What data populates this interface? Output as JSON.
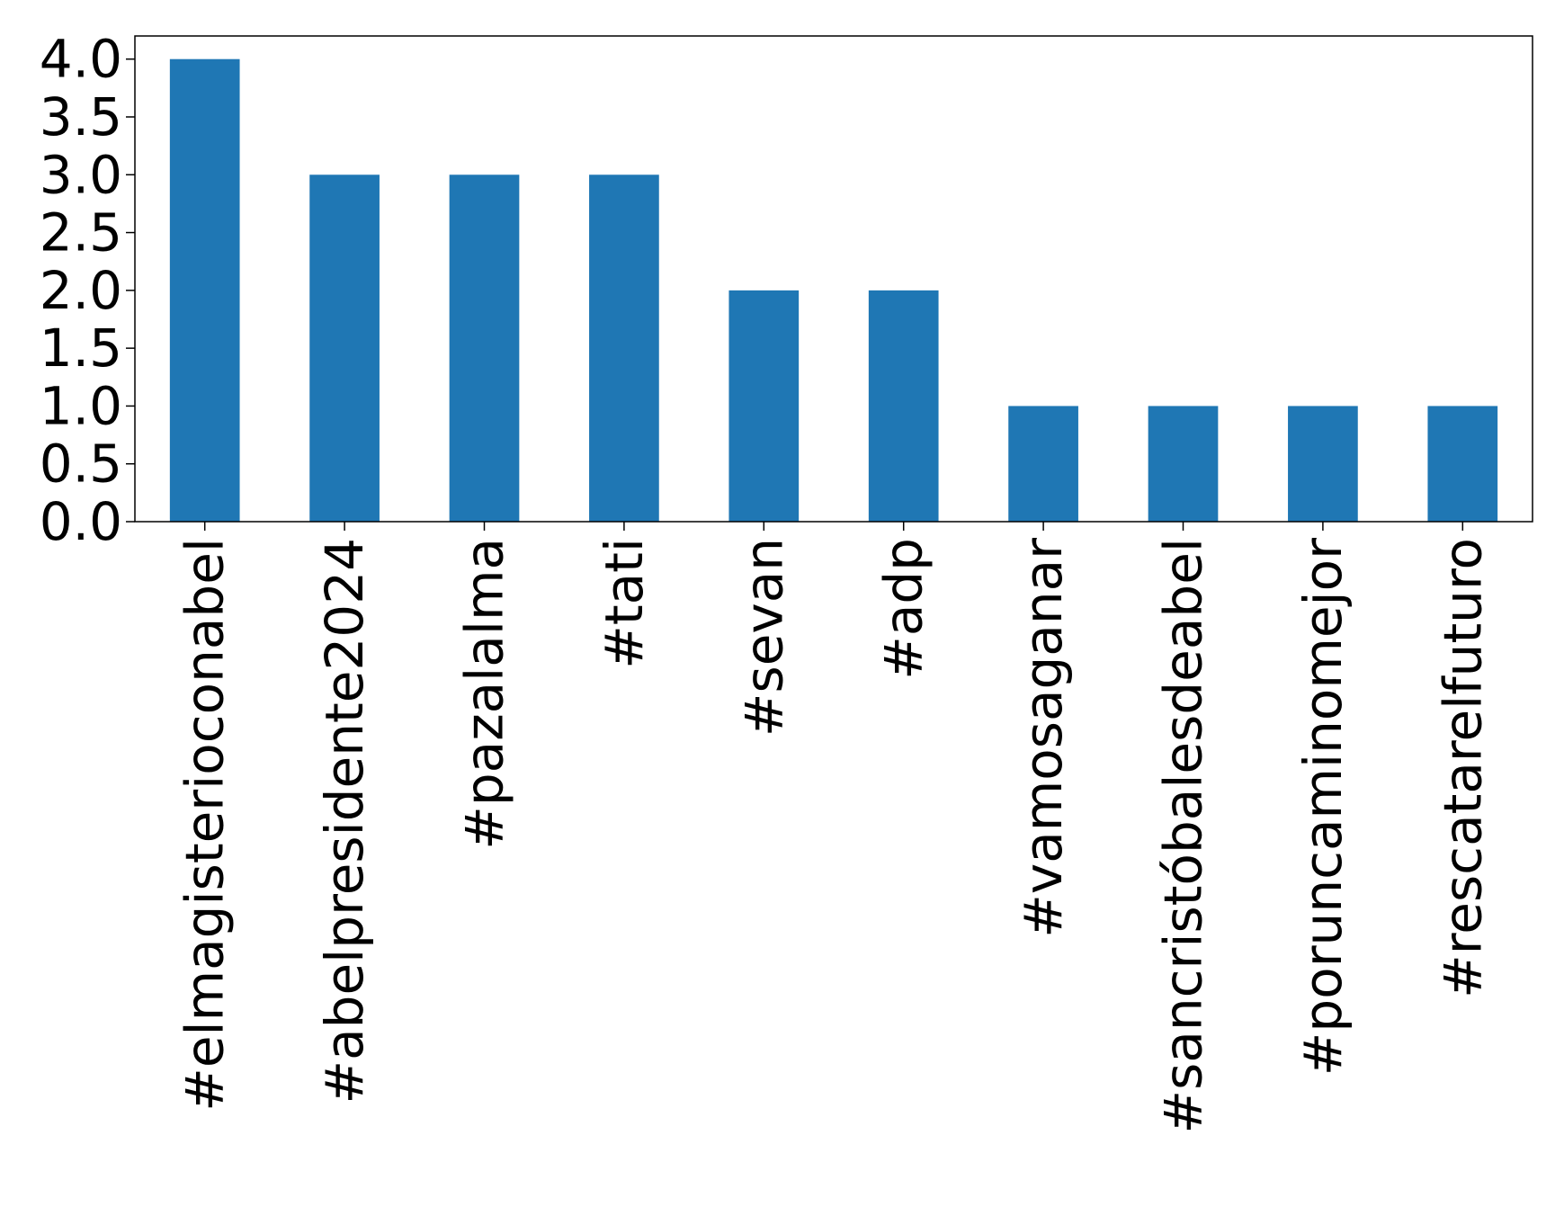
{
  "chart_data": {
    "type": "bar",
    "categories": [
      "#elmagisterioconabel",
      "#abelpresidente2024",
      "#pazalalma",
      "#tati",
      "#sevan",
      "#adp",
      "#vamosaganar",
      "#sancristóbalesdeabel",
      "#poruncaminomejor",
      "#rescatarelfuturo"
    ],
    "values": [
      4,
      3,
      3,
      3,
      2,
      2,
      1,
      1,
      1,
      1
    ],
    "title": "",
    "xlabel": "",
    "ylabel": "",
    "ylim": [
      0,
      4.2
    ],
    "yticks": [
      "0.0",
      "0.5",
      "1.0",
      "1.5",
      "2.0",
      "2.5",
      "3.0",
      "3.5",
      "4.0"
    ],
    "bar_color": "#1f77b4",
    "grid": false,
    "legend": "none"
  }
}
